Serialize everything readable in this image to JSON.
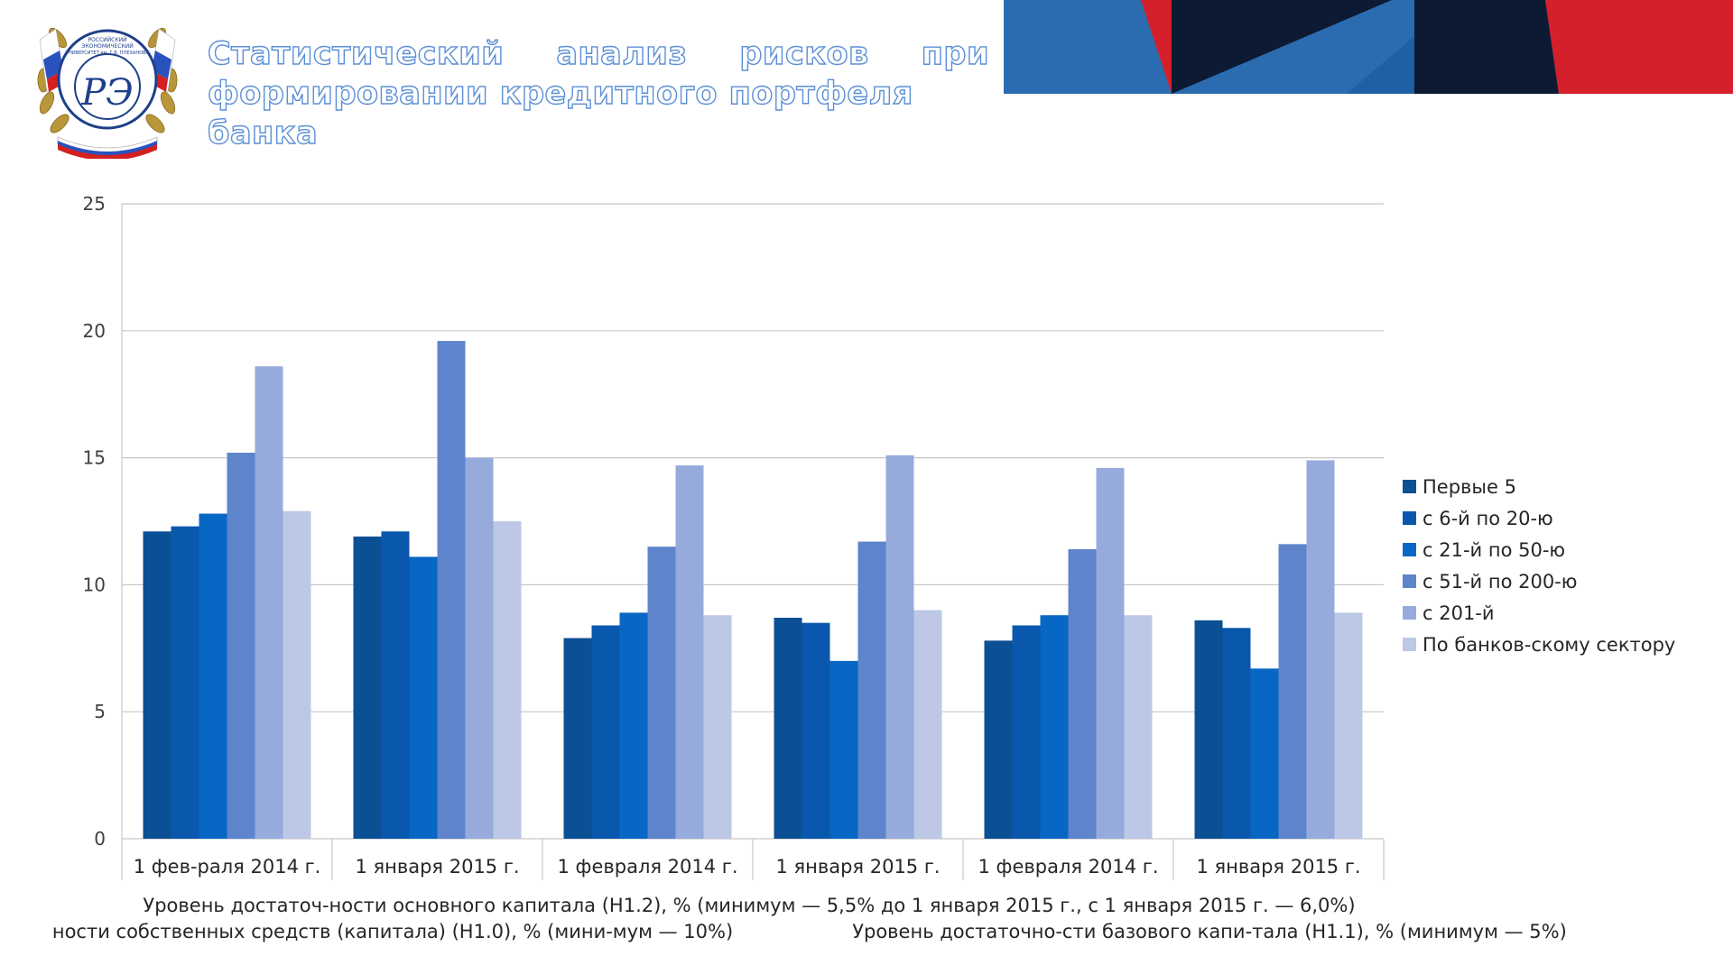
{
  "header": {
    "title_line1": "Статистический анализ рисков при",
    "title_line2": "формировании кредитного портфеля банка",
    "logo_text": "РОССИЙСКИЙ ЭКОНОМИЧЕСКИЙ УНИВЕРСИТЕТ им. Г.В. ПЛЕХАНОВА"
  },
  "colors": {
    "banner_blue": "#2b6cb0",
    "banner_dark": "#0d1a33",
    "banner_red": "#d4202b",
    "title_outline": "#5b8fd6"
  },
  "chart_data": {
    "type": "bar",
    "title": "",
    "xlabel": "",
    "ylabel": "",
    "ylim": [
      0,
      25
    ],
    "yticks": [
      "0",
      "5",
      "10",
      "15",
      "20",
      "25"
    ],
    "grid": true,
    "legend_position": "right",
    "categories": [
      "1 фев-раля 2014 г.",
      "1 января 2015 г.",
      "1 февраля 2014 г.",
      "1 января 2015 г.",
      "1 февраля 2014 г.",
      "1 января 2015 г."
    ],
    "group_labels": [
      "ности собственных средств (капитала) (Н1.0), % (мини-мум — 10%)",
      "Уровень достаточ-ности основного капитала (Н1.2), % (минимум — 5,5% до 1 января 2015 г., с 1 января 2015 г. — 6,0%)",
      "Уровень достаточно-сти базового капи-тала (Н1.1), % (минимум — 5%)"
    ],
    "series": [
      {
        "name": "Первые 5",
        "color": "#0b4f94",
        "values": [
          12.1,
          11.9,
          7.9,
          8.7,
          7.8,
          8.6
        ]
      },
      {
        "name": "с 6-й по 20-ю",
        "color": "#0a58ad",
        "values": [
          12.3,
          12.1,
          8.4,
          8.5,
          8.4,
          8.3
        ]
      },
      {
        "name": "с 21-й по 50-ю",
        "color": "#0866c4",
        "values": [
          12.8,
          11.1,
          8.9,
          7.0,
          8.8,
          6.7
        ]
      },
      {
        "name": "с 51-й по 200-ю",
        "color": "#5e84cc",
        "values": [
          15.2,
          19.6,
          11.5,
          11.7,
          11.4,
          11.6
        ]
      },
      {
        "name": "с 201-й",
        "color": "#96abdc",
        "values": [
          18.6,
          15.0,
          14.7,
          15.1,
          14.6,
          14.9
        ]
      },
      {
        "name": "По банков-скому сектору",
        "color": "#bcc8e6",
        "values": [
          12.9,
          12.5,
          8.8,
          9.0,
          8.8,
          8.9
        ]
      }
    ]
  }
}
